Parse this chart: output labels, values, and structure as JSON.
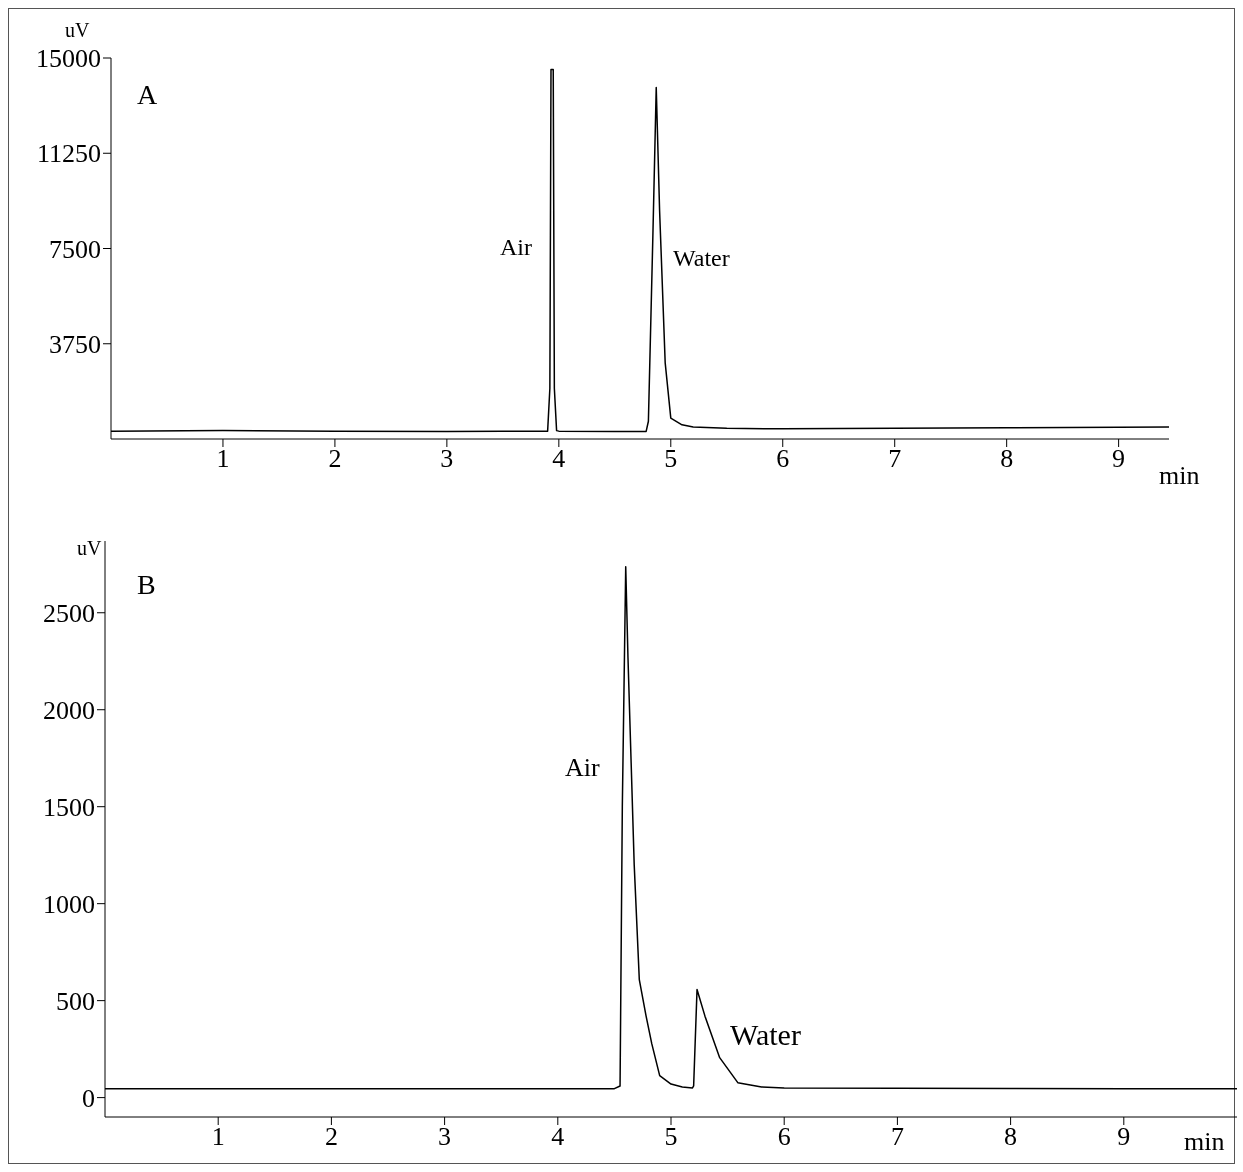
{
  "chart_data": [
    {
      "type": "line",
      "title": "A",
      "xlabel": "min",
      "ylabel": "uV",
      "xlim": [
        0,
        9.45
      ],
      "xticks": [
        1,
        2,
        3,
        4,
        5,
        6,
        7,
        8,
        9
      ],
      "ylim": [
        0,
        15000
      ],
      "yticks": [
        3750,
        7500,
        11250,
        15000
      ],
      "grid": false,
      "legend": false,
      "marker": "none",
      "line_style": "solid",
      "series": [
        {
          "color": "#000000",
          "x": [
            0,
            1,
            2,
            3,
            3.5,
            3.9,
            3.92,
            3.93,
            3.95,
            3.96,
            3.98,
            4.0,
            4.5,
            4.78,
            4.8,
            4.84,
            4.87,
            4.9,
            4.95,
            5.0,
            5.1,
            5.2,
            5.5,
            6,
            7,
            8,
            9,
            9.45
          ],
          "values": [
            310,
            330,
            310,
            300,
            310,
            310,
            2000,
            14550,
            14550,
            2000,
            330,
            310,
            300,
            300,
            700,
            8000,
            13840,
            9000,
            3000,
            820,
            560,
            470,
            420,
            400,
            420,
            440,
            460,
            470
          ]
        }
      ],
      "annotations": [
        "Air",
        "Water"
      ]
    },
    {
      "type": "line",
      "title": "B",
      "xlabel": "min",
      "ylabel": "uV",
      "xlim": [
        0,
        10
      ],
      "xticks": [
        1,
        2,
        3,
        4,
        5,
        6,
        7,
        8,
        9
      ],
      "ylim": [
        -100,
        2870
      ],
      "yticks": [
        0,
        500,
        1000,
        1500,
        2000,
        2500
      ],
      "grid": false,
      "legend": false,
      "marker": "none",
      "line_style": "solid",
      "series": [
        {
          "color": "#000000",
          "x": [
            0,
            1,
            2,
            3,
            4,
            4.5,
            4.55,
            4.57,
            4.6,
            4.62,
            4.675,
            4.72,
            4.78,
            4.83,
            4.9,
            5.0,
            5.1,
            5.19,
            5.2,
            5.23,
            5.3,
            5.43,
            5.59,
            5.8,
            6,
            7,
            8,
            9,
            10
          ],
          "values": [
            46,
            46,
            46,
            46,
            46,
            46,
            60,
            1500,
            2737,
            2268,
            1200,
            608,
            420,
            278,
            113,
            70,
            55,
            50,
            60,
            557,
            420,
            206,
            77,
            55,
            50,
            48,
            47,
            46,
            46
          ]
        }
      ],
      "annotations": [
        "Air",
        "Water"
      ]
    }
  ]
}
